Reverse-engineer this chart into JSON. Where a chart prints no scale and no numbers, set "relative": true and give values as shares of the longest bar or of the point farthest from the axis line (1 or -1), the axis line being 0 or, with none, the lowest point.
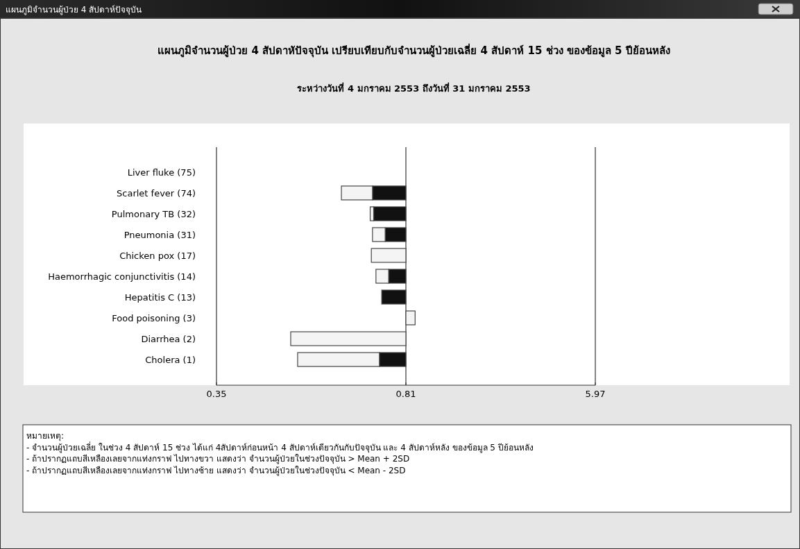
{
  "chart_data": {
    "type": "bar",
    "orientation": "horizontal",
    "stacked": true,
    "relative": true,
    "title": "แผนภูมิจำนวนผู้ป่วย 4 สัปดาหัปัจจุบัน เปรียบเทียบกับจำนวนผู้ป่วยเฉลี่ย 4 สัปดาห์ 15 ช่วง ของข้อมูล 5 ปีย้อนหลัง",
    "subtitle": "ระหว่างวันที่ 4 มกราคม 2553 ถึงวันที่ 31 มกราคม 2553",
    "annotations": [
      "แผนภูมิจำนวนผู้ป่วย 4 สัปดาห์ปัจจุบัน",
      "หมายเหตุ:",
      "- จำนวนผู้ป่วยเฉลี่ย ในช่วง 4 สัปดาห์ 15 ช่วง ได้แก่ 4สัปดาห์ก่อนหน้า 4 สัปดาห์เดียวกันกับปัจจุบัน และ 4 สัปดาห์หลัง ของข้อมูล 5 ปีย้อนหลัง",
      "- ถ้าปรากฏแถบสีเหลืองเลยจากแท่งกราฟ ไปทางขวา แสดงว่า จำนวนผู้ป่วยในช่วงปัจจุบัน > Mean + 2SD",
      "- ถ้าปรากฏแถบสีเหลืองเลยจากแท่งกราฟ ไปทางซ้าย แสดงว่า จำนวนผู้ป่วยในช่วงปัจจุบัน < Mean - 2SD",
      "0.35",
      "0.81",
      "5.97"
    ],
    "categories": [
      "Liver fluke (75)",
      "Scarlet fever (74)",
      "Pulmonary TB (32)",
      "Pneumonia (31)",
      "Chicken pox (17)",
      "Haemorrhagic conjunctivitis (14)",
      "Hepatitis C (13)",
      "Food poisoning (3)",
      "Diarrhea (2)",
      "Cholera (1)"
    ],
    "series": [
      {
        "color": "#111111",
        "values": [
          null,
          -0.29,
          -0.28,
          -0.18,
          null,
          -0.15,
          -0.21,
          null,
          null,
          -0.23
        ]
      },
      {
        "color": "#f4f4f4",
        "values": [
          null,
          -0.27,
          -0.03,
          -0.11,
          -0.3,
          -0.11,
          null,
          0.08,
          -1,
          -0.71
        ]
      }
    ]
  }
}
